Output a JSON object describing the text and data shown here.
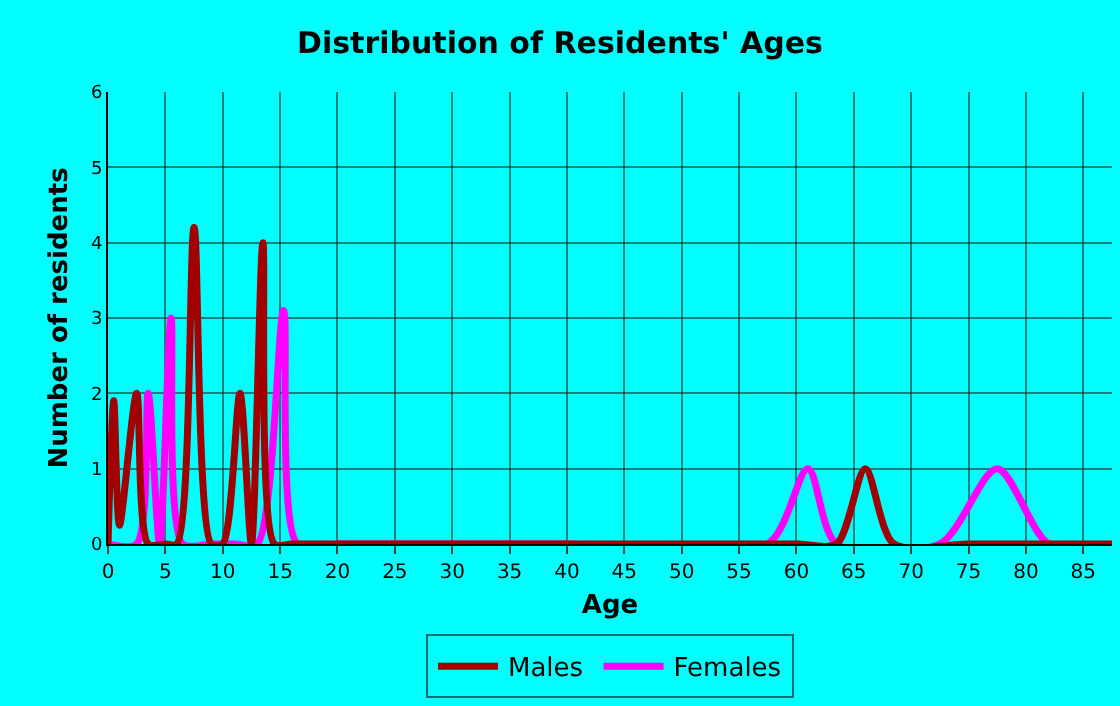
{
  "chart_data": {
    "type": "line",
    "title": "Distribution of Residents' Ages",
    "xlabel": "Age",
    "ylabel": "Number of residents",
    "xlim": [
      0,
      87.5
    ],
    "xticks": [
      0,
      5,
      10,
      15,
      20,
      25,
      30,
      35,
      40,
      45,
      50,
      55,
      60,
      65,
      70,
      75,
      80,
      85
    ],
    "ylim": [
      0,
      6
    ],
    "yticks": [
      0,
      1,
      2,
      3,
      4,
      5,
      6
    ],
    "grid": true,
    "legend": "bottom",
    "marker": "none",
    "line_style": "solid",
    "series": [
      {
        "name": "Males",
        "color": "#a00000",
        "x": [
          0,
          0.5,
          1,
          2.5,
          3.5,
          5,
          6,
          7.5,
          9,
          10,
          11.5,
          12.5,
          13.5,
          14.5,
          16,
          20,
          30,
          40,
          50,
          60,
          63.5,
          66,
          68.5,
          75,
          87.5
        ],
        "values": [
          0,
          1.9,
          0.25,
          2,
          0,
          0,
          0,
          4.2,
          0,
          0,
          2,
          0,
          4,
          0,
          0,
          0,
          0,
          0,
          0,
          0,
          0,
          1,
          0,
          0,
          0
        ]
      },
      {
        "name": "Females",
        "color": "#ff00ff",
        "x": [
          0,
          2.5,
          3.5,
          4.5,
          5.5,
          6.5,
          9,
          11,
          13,
          15.3,
          16.5,
          20,
          40,
          57.5,
          61,
          63.5,
          72.5,
          77.5,
          82,
          87.5
        ],
        "values": [
          0,
          0,
          2,
          0,
          3,
          0,
          0,
          0,
          0,
          3.1,
          0,
          0,
          0,
          0,
          1,
          0,
          0,
          1,
          0,
          0
        ]
      }
    ]
  }
}
